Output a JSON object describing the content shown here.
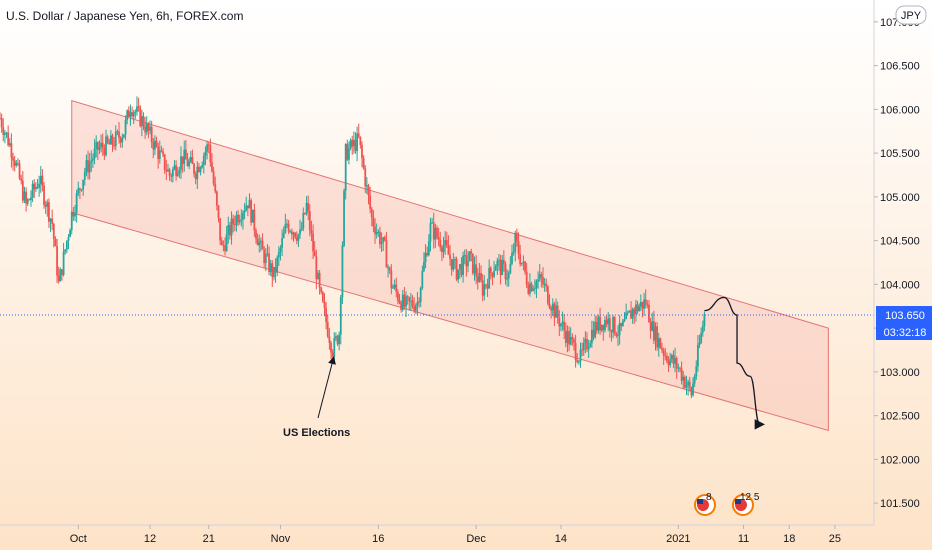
{
  "title": "U.S. Dollar / Japanese Yen, 6h, FOREX.com",
  "currency_badge": "JPY",
  "price_label": "103.650",
  "countdown_label": "03:32:18",
  "annotation": "US Elections",
  "event_badges": [
    "8",
    "12 5"
  ],
  "colors": {
    "bg_top": "#ffffff",
    "bg_bottom": "#fde3c8",
    "up": "#26a69a",
    "down": "#ef5350",
    "channel_fill": "#f7b7b0",
    "channel_stroke": "#e57373",
    "price_line": "#2962ff"
  },
  "chart_data": {
    "type": "candlestick",
    "title": "U.S. Dollar / Japanese Yen, 6h, FOREX.com",
    "x_tick_labels": [
      "Oct",
      "12",
      "21",
      "Nov",
      "16",
      "Dec",
      "14",
      "2021",
      "11",
      "18",
      "25"
    ],
    "x_tick_days": [
      0,
      11,
      20,
      31,
      46,
      61,
      74,
      92,
      102,
      109,
      116
    ],
    "x_range_days": [
      -12,
      122
    ],
    "y_tick_labels": [
      "101.500",
      "102.000",
      "102.500",
      "103.000",
      "103.500",
      "104.000",
      "104.500",
      "105.000",
      "105.500",
      "106.000",
      "106.500",
      "107.000"
    ],
    "y_ticks": [
      101.5,
      102.0,
      102.5,
      103.0,
      103.5,
      104.0,
      104.5,
      105.0,
      105.5,
      106.0,
      106.5,
      107.0
    ],
    "ylim": [
      101.25,
      107.25
    ],
    "current_price": 103.65,
    "ohlc_path": [
      [
        -12,
        105.9
      ],
      [
        -10,
        105.5
      ],
      [
        -8,
        104.9
      ],
      [
        -6,
        105.2
      ],
      [
        -4,
        104.7
      ],
      [
        -3,
        104.0
      ],
      [
        -1,
        104.8
      ],
      [
        1,
        105.3
      ],
      [
        3,
        105.55
      ],
      [
        5,
        105.6
      ],
      [
        7,
        105.75
      ],
      [
        8,
        106.05
      ],
      [
        10,
        105.85
      ],
      [
        12,
        105.55
      ],
      [
        14,
        105.25
      ],
      [
        16,
        105.45
      ],
      [
        18,
        105.3
      ],
      [
        20,
        105.6
      ],
      [
        22,
        104.4
      ],
      [
        24,
        104.75
      ],
      [
        26,
        104.95
      ],
      [
        28,
        104.4
      ],
      [
        30,
        104.1
      ],
      [
        32,
        104.7
      ],
      [
        34,
        104.55
      ],
      [
        35,
        104.9
      ],
      [
        37,
        103.9
      ],
      [
        39,
        103.25
      ],
      [
        40,
        103.45
      ],
      [
        41,
        105.5
      ],
      [
        43,
        105.65
      ],
      [
        45,
        104.75
      ],
      [
        47,
        104.4
      ],
      [
        48,
        104.0
      ],
      [
        50,
        103.75
      ],
      [
        52,
        103.8
      ],
      [
        54,
        104.65
      ],
      [
        56,
        104.45
      ],
      [
        58,
        104.15
      ],
      [
        60,
        104.3
      ],
      [
        62,
        103.95
      ],
      [
        64,
        104.25
      ],
      [
        66,
        104.1
      ],
      [
        67,
        104.5
      ],
      [
        69,
        104.0
      ],
      [
        71,
        104.05
      ],
      [
        73,
        103.7
      ],
      [
        75,
        103.4
      ],
      [
        77,
        103.15
      ],
      [
        79,
        103.5
      ],
      [
        81,
        103.6
      ],
      [
        83,
        103.45
      ],
      [
        85,
        103.7
      ],
      [
        87,
        103.8
      ],
      [
        88,
        103.5
      ],
      [
        90,
        103.2
      ],
      [
        92,
        103.05
      ],
      [
        94,
        102.75
      ],
      [
        95,
        103.2
      ],
      [
        96,
        103.65
      ]
    ],
    "channel": {
      "upper_start": [
        -1,
        106.1
      ],
      "upper_end": [
        115,
        103.5
      ],
      "lower_start": [
        -1,
        104.82
      ],
      "lower_end": [
        115,
        102.33
      ]
    },
    "forecast_path": [
      [
        96,
        103.7
      ],
      [
        99,
        103.85
      ],
      [
        101,
        103.65
      ],
      [
        101,
        103.1
      ],
      [
        103,
        102.95
      ],
      [
        104.5,
        102.4
      ]
    ]
  }
}
